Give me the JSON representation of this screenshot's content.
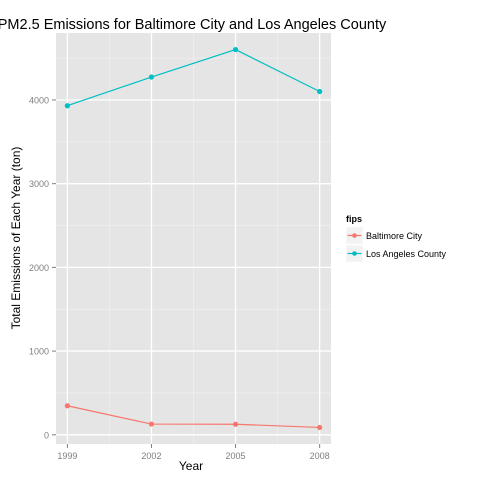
{
  "chart_data": {
    "type": "line",
    "title": "PM2.5 Emissions for Baltimore City and Los Angeles County",
    "xlabel": "Year",
    "ylabel": "Total Emissions of Each Year (ton)",
    "x": [
      1999,
      2002,
      2005,
      2008
    ],
    "x_ticks": [
      "1999",
      "2002",
      "2005",
      "2008"
    ],
    "y_ticks": [
      "0",
      "1000",
      "2000",
      "3000",
      "4000"
    ],
    "ylim": [
      -110,
      4800
    ],
    "grid": true,
    "legend": {
      "title": "fips",
      "placement": "right"
    },
    "series": [
      {
        "name": "Baltimore City",
        "color": "#F8766D",
        "values": [
          347,
          128,
          126,
          88
        ]
      },
      {
        "name": "Los Angeles County",
        "color": "#00BFC4",
        "values": [
          3931,
          4274,
          4602,
          4101
        ]
      }
    ]
  }
}
